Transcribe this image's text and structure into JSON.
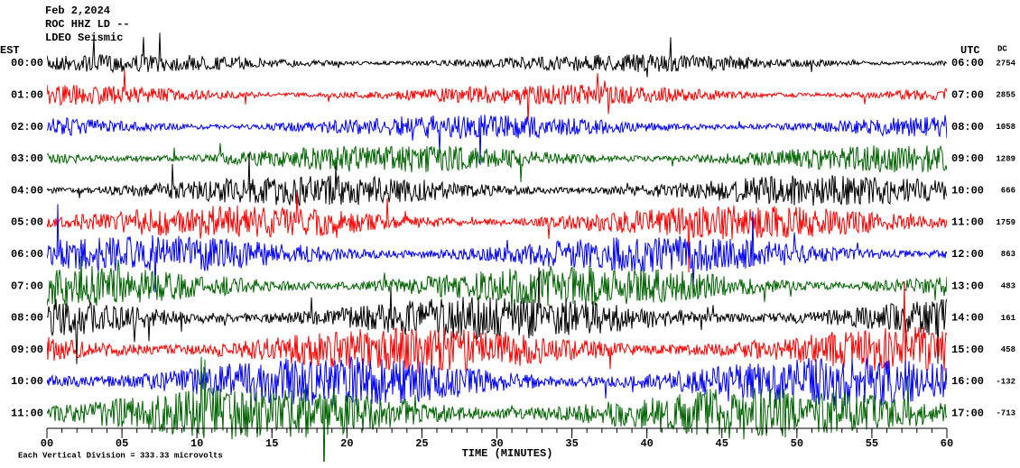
{
  "header": {
    "date": "Feb 2,2024",
    "station": "ROC HHZ LD --",
    "network": "LDEO Seismic"
  },
  "left_axis_title": "EST",
  "right_axis_title": "UTC",
  "dc_title": "DC",
  "trace_colors": [
    "#000000",
    "#ff0000",
    "#0000ff",
    "#006400"
  ],
  "rows": [
    {
      "est": "00:00",
      "utc": "06:00",
      "dc": 2754
    },
    {
      "est": "01:00",
      "utc": "07:00",
      "dc": 2855
    },
    {
      "est": "02:00",
      "utc": "08:00",
      "dc": 1058
    },
    {
      "est": "03:00",
      "utc": "09:00",
      "dc": 1289
    },
    {
      "est": "04:00",
      "utc": "10:00",
      "dc": 666
    },
    {
      "est": "05:00",
      "utc": "11:00",
      "dc": 1759
    },
    {
      "est": "06:00",
      "utc": "12:00",
      "dc": 863
    },
    {
      "est": "07:00",
      "utc": "13:00",
      "dc": 483
    },
    {
      "est": "08:00",
      "utc": "14:00",
      "dc": 161
    },
    {
      "est": "09:00",
      "utc": "15:00",
      "dc": 458
    },
    {
      "est": "10:00",
      "utc": "16:00",
      "dc": -132
    },
    {
      "est": "11:00",
      "utc": "17:00",
      "dc": -713
    }
  ],
  "x_axis": {
    "title": "TIME (MINUTES)",
    "xlim": [
      0,
      60
    ],
    "xticks": [
      {
        "value": 0,
        "label": "00"
      },
      {
        "value": 5,
        "label": "05"
      },
      10,
      15,
      20,
      25,
      30,
      35,
      40,
      45,
      50,
      55,
      60
    ]
  },
  "footer": "Each Vertical Division = 333.33 microvolts"
}
